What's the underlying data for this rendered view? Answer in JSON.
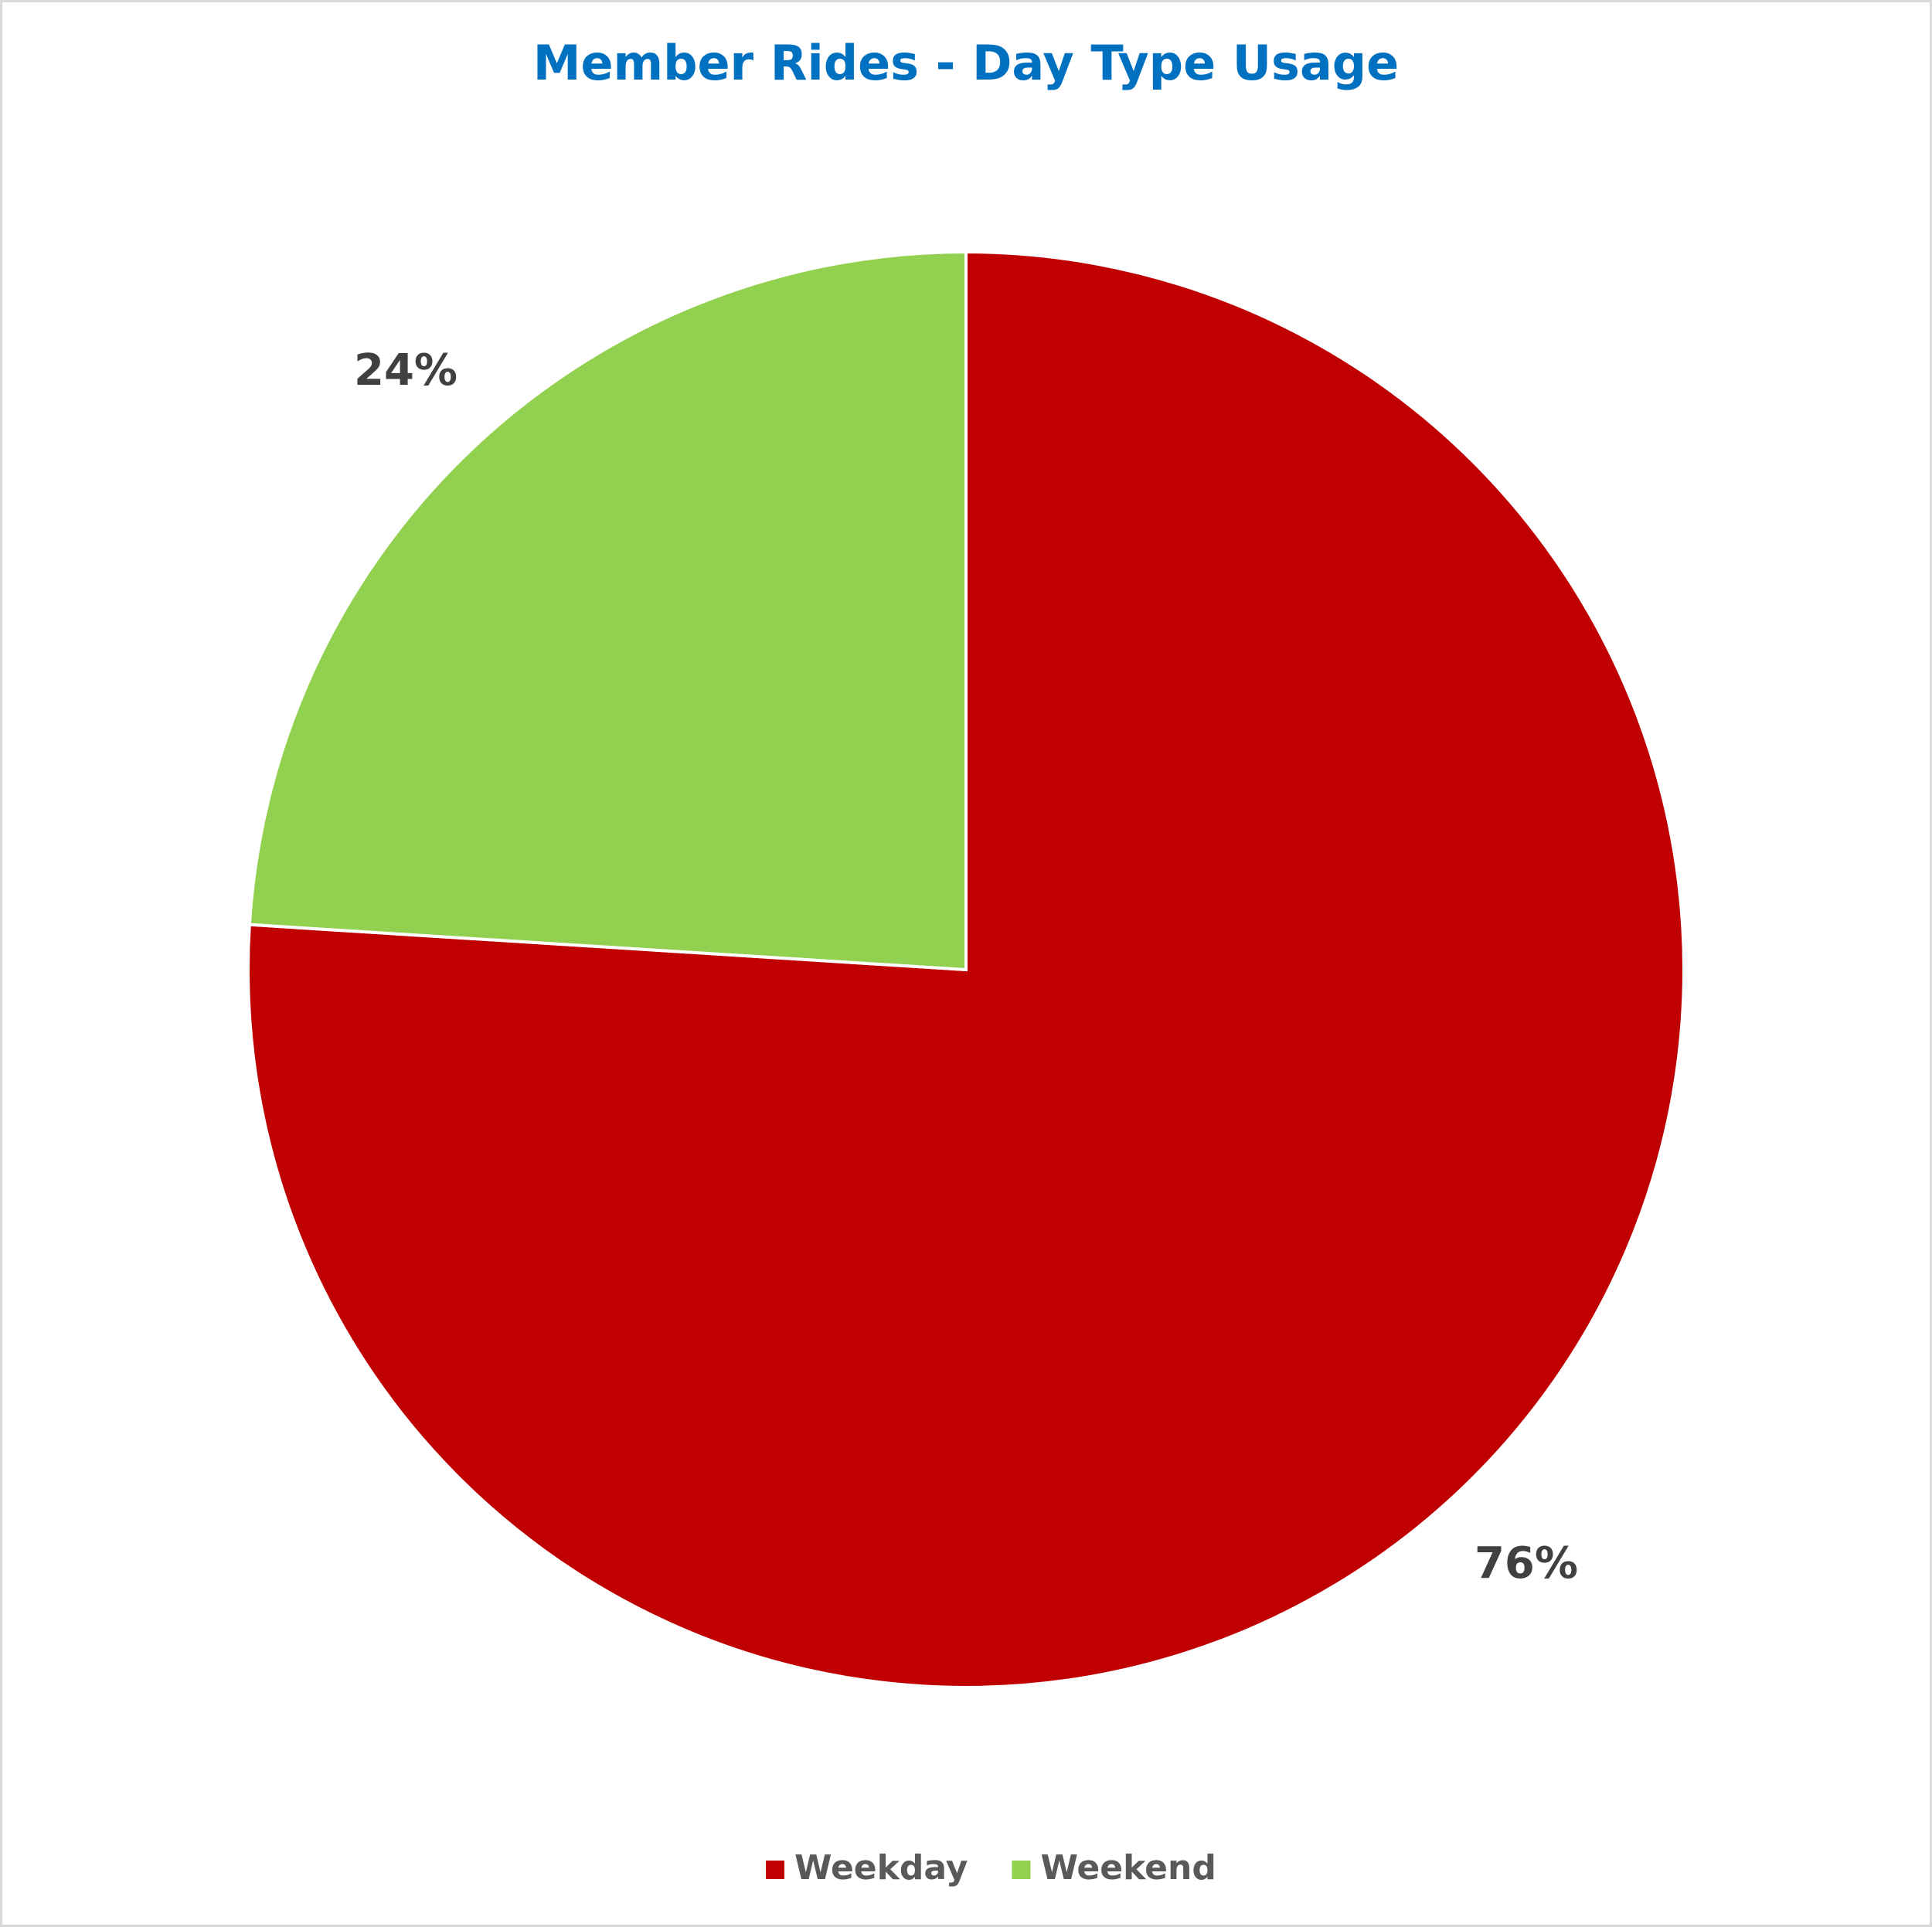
{
  "chart_data": {
    "type": "pie",
    "title": "Member Rides - Day Type Usage",
    "categories": [
      "Weekday",
      "Weekend"
    ],
    "values": [
      76,
      24
    ],
    "value_labels": [
      "76%",
      "24%"
    ],
    "colors": [
      "#c00000",
      "#92d050"
    ],
    "legend": "bottom"
  }
}
